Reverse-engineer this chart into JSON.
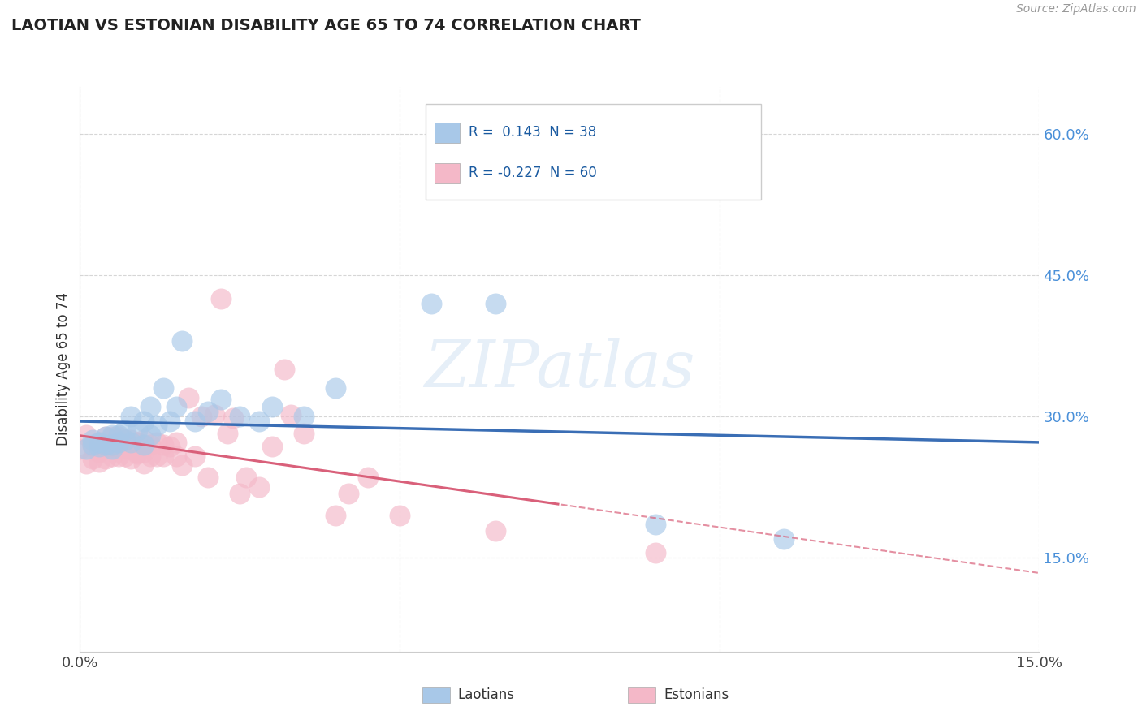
{
  "title": "LAOTIAN VS ESTONIAN DISABILITY AGE 65 TO 74 CORRELATION CHART",
  "source_text": "Source: ZipAtlas.com",
  "ylabel": "Disability Age 65 to 74",
  "xlim": [
    0.0,
    0.15
  ],
  "ylim": [
    0.05,
    0.65
  ],
  "laotian_R": 0.143,
  "laotian_N": 38,
  "estonian_R": -0.227,
  "estonian_N": 60,
  "laotian_color": "#A8C8E8",
  "laotian_edge_color": "#7AACD4",
  "estonian_color": "#F4B8C8",
  "estonian_edge_color": "#E890A8",
  "laotian_line_color": "#3A6EB5",
  "estonian_line_color": "#D9607A",
  "watermark": "ZIPatlas",
  "laotian_x": [
    0.001,
    0.002,
    0.002,
    0.003,
    0.003,
    0.004,
    0.004,
    0.005,
    0.005,
    0.005,
    0.006,
    0.006,
    0.007,
    0.007,
    0.008,
    0.008,
    0.009,
    0.01,
    0.01,
    0.011,
    0.011,
    0.012,
    0.013,
    0.014,
    0.015,
    0.016,
    0.018,
    0.02,
    0.022,
    0.025,
    0.028,
    0.03,
    0.035,
    0.04,
    0.055,
    0.065,
    0.09,
    0.11
  ],
  "laotian_y": [
    0.265,
    0.27,
    0.275,
    0.268,
    0.272,
    0.27,
    0.278,
    0.265,
    0.27,
    0.28,
    0.272,
    0.28,
    0.275,
    0.285,
    0.272,
    0.3,
    0.285,
    0.27,
    0.295,
    0.28,
    0.31,
    0.29,
    0.33,
    0.295,
    0.31,
    0.38,
    0.295,
    0.305,
    0.318,
    0.3,
    0.295,
    0.31,
    0.3,
    0.33,
    0.42,
    0.42,
    0.185,
    0.17
  ],
  "estonian_x": [
    0.0,
    0.001,
    0.001,
    0.002,
    0.002,
    0.003,
    0.003,
    0.003,
    0.004,
    0.004,
    0.004,
    0.005,
    0.005,
    0.005,
    0.006,
    0.006,
    0.006,
    0.007,
    0.007,
    0.007,
    0.008,
    0.008,
    0.008,
    0.009,
    0.009,
    0.009,
    0.01,
    0.01,
    0.01,
    0.011,
    0.011,
    0.012,
    0.012,
    0.013,
    0.013,
    0.014,
    0.015,
    0.015,
    0.016,
    0.017,
    0.018,
    0.019,
    0.02,
    0.021,
    0.022,
    0.023,
    0.024,
    0.025,
    0.026,
    0.028,
    0.03,
    0.032,
    0.033,
    0.035,
    0.04,
    0.042,
    0.045,
    0.05,
    0.065,
    0.09
  ],
  "estonian_y": [
    0.265,
    0.25,
    0.28,
    0.255,
    0.268,
    0.252,
    0.262,
    0.272,
    0.255,
    0.268,
    0.278,
    0.258,
    0.268,
    0.278,
    0.258,
    0.268,
    0.278,
    0.258,
    0.265,
    0.275,
    0.255,
    0.265,
    0.275,
    0.26,
    0.272,
    0.262,
    0.25,
    0.262,
    0.275,
    0.258,
    0.27,
    0.258,
    0.272,
    0.258,
    0.27,
    0.268,
    0.258,
    0.272,
    0.248,
    0.32,
    0.258,
    0.3,
    0.235,
    0.302,
    0.425,
    0.282,
    0.298,
    0.218,
    0.235,
    0.225,
    0.268,
    0.35,
    0.302,
    0.282,
    0.195,
    0.218,
    0.235,
    0.195,
    0.178,
    0.155
  ]
}
